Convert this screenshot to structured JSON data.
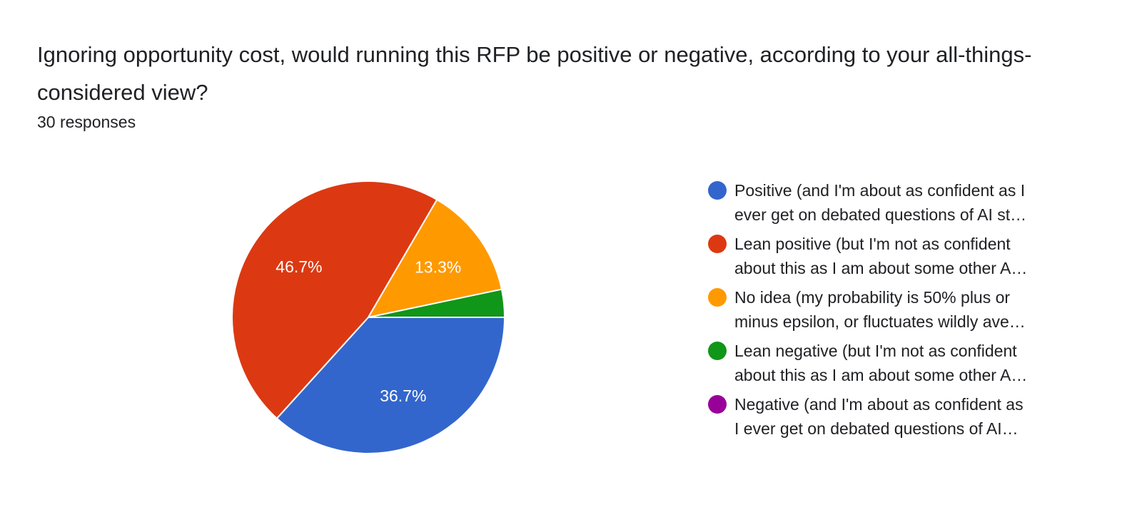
{
  "question": {
    "title": "Ignoring opportunity cost, would running this RFP be positive or negative, according to your all-things-considered view?",
    "responses": "30 responses"
  },
  "chart_data": {
    "type": "pie",
    "total_responses": 30,
    "slices": [
      {
        "label": "Positive (and I'm about as confident as I\never get on debated questions of AI st…",
        "value": 36.7,
        "display": "36.7%",
        "color": "#3366cc"
      },
      {
        "label": "Lean positive (but I'm not as confident\nabout this as I am about some other A…",
        "value": 46.7,
        "display": "46.7%",
        "color": "#dc3912"
      },
      {
        "label": "No idea (my probability is 50% plus or\nminus epsilon, or fluctuates wildly ave…",
        "value": 13.3,
        "display": "13.3%",
        "color": "#ff9900"
      },
      {
        "label": "Lean negative (but I'm not as confident\nabout this as I am about some other A…",
        "value": 3.3,
        "display": "",
        "color": "#109618"
      },
      {
        "label": "Negative (and I'm about as confident as\nI ever get on debated questions of AI…",
        "value": 0,
        "display": "",
        "color": "#990099"
      }
    ],
    "start_angle_deg": 0,
    "direction": "clockwise-from-3-oclock",
    "legend_position": "right"
  }
}
